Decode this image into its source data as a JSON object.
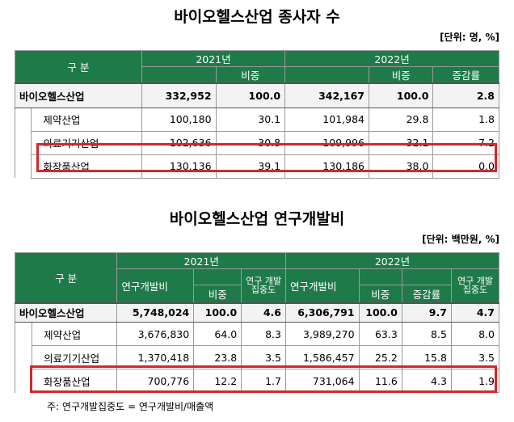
{
  "table1": {
    "title": "바이오헬스산업 종사자 수",
    "unit": "[단위: 명, %]",
    "header": {
      "category": "구 분",
      "year1": "2021년",
      "year2": "2022년",
      "share": "비중",
      "change": "증감률"
    },
    "rows": [
      {
        "name": "바이오헬스산업",
        "v2021": "332,952",
        "s2021": "100.0",
        "v2022": "342,167",
        "s2022": "100.0",
        "chg": "2.8"
      },
      {
        "name": "제약산업",
        "v2021": "100,180",
        "s2021": "30.1",
        "v2022": "101,984",
        "s2022": "29.8",
        "chg": "1.8"
      },
      {
        "name": "의료기기산업",
        "v2021": "102,636",
        "s2021": "30.8",
        "v2022": "109,996",
        "s2022": "32.1",
        "chg": "7.2"
      },
      {
        "name": "화장품산업",
        "v2021": "130,136",
        "s2021": "39.1",
        "v2022": "130,186",
        "s2022": "38.0",
        "chg": "0.0"
      }
    ]
  },
  "table2": {
    "title": "바이오헬스산업 연구개발비",
    "unit": "[단위: 백만원, %]",
    "header": {
      "category": "구 분",
      "year1": "2021년",
      "year2": "2022년",
      "rnd": "연구개발비",
      "share": "비중",
      "intensity": "연구 개발 집중도",
      "change": "증감률"
    },
    "rows": [
      {
        "name": "바이오헬스산업",
        "r2021": "5,748,024",
        "s2021": "100.0",
        "i2021": "4.6",
        "r2022": "6,306,791",
        "s2022": "100.0",
        "chg": "9.7",
        "i2022": "4.7"
      },
      {
        "name": "제약산업",
        "r2021": "3,676,830",
        "s2021": "64.0",
        "i2021": "8.3",
        "r2022": "3,989,270",
        "s2022": "63.3",
        "chg": "8.5",
        "i2022": "8.0"
      },
      {
        "name": "의료기기산업",
        "r2021": "1,370,418",
        "s2021": "23.8",
        "i2021": "3.5",
        "r2022": "1,586,457",
        "s2022": "25.2",
        "chg": "15.8",
        "i2022": "3.5"
      },
      {
        "name": "화장품산업",
        "r2021": "700,776",
        "s2021": "12.2",
        "i2021": "1.7",
        "r2022": "731,064",
        "s2022": "11.6",
        "chg": "4.3",
        "i2022": "1.9"
      }
    ],
    "note": "주: 연구개발집중도 = 연구개발비/매출액"
  }
}
